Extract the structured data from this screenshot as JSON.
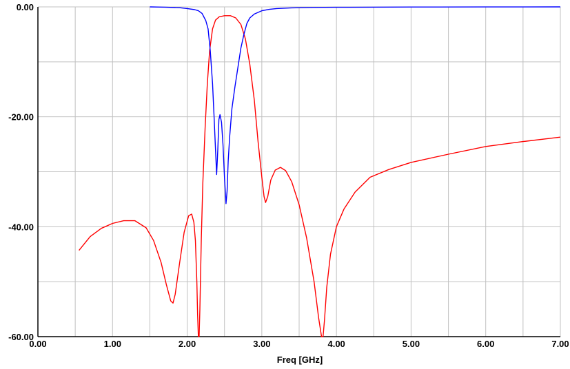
{
  "chart_data": {
    "type": "line",
    "title": "",
    "xlabel": "Freq [GHz]",
    "ylabel": "",
    "xlim": [
      0,
      7
    ],
    "ylim": [
      -60,
      0
    ],
    "x_ticks": [
      0,
      0.5,
      1,
      1.5,
      2,
      2.5,
      3,
      3.5,
      4,
      4.5,
      5,
      5.5,
      6,
      6.5,
      7
    ],
    "x_tick_labels": [
      "0.00",
      "1.00",
      "2.00",
      "3.00",
      "4.00",
      "5.00",
      "6.00",
      "7.00"
    ],
    "x_tick_label_values": [
      0,
      1,
      2,
      3,
      4,
      5,
      6,
      7
    ],
    "y_ticks": [
      0,
      -10,
      -20,
      -30,
      -40,
      -50,
      -60
    ],
    "y_tick_labels": [
      "0.00",
      "-20.00",
      "-40.00",
      "-60.00"
    ],
    "y_tick_label_values": [
      0,
      -20,
      -40,
      -60
    ],
    "grid": true,
    "legend": "none",
    "series": [
      {
        "color": "#ff0000",
        "x": [
          0.55,
          0.7,
          0.85,
          1.0,
          1.15,
          1.3,
          1.45,
          1.55,
          1.65,
          1.72,
          1.78,
          1.81,
          1.84,
          1.9,
          1.96,
          2.02,
          2.06,
          2.09,
          2.11,
          2.13,
          2.14,
          2.15,
          2.16,
          2.17,
          2.19,
          2.21,
          2.24,
          2.27,
          2.3,
          2.34,
          2.38,
          2.43,
          2.5,
          2.58,
          2.65,
          2.72,
          2.78,
          2.84,
          2.9,
          2.95,
          3.0,
          3.03,
          3.05,
          3.08,
          3.12,
          3.18,
          3.25,
          3.32,
          3.4,
          3.5,
          3.6,
          3.7,
          3.76,
          3.8,
          3.82,
          3.84,
          3.87,
          3.92,
          4.0,
          4.1,
          4.25,
          4.45,
          4.7,
          5.0,
          5.5,
          6.0,
          6.5,
          7.0
        ],
        "values": [
          -44.3,
          -41.8,
          -40.3,
          -39.4,
          -38.9,
          -38.9,
          -40.2,
          -42.5,
          -46.5,
          -50.5,
          -53.5,
          -53.9,
          -52.3,
          -46.5,
          -41.0,
          -38.0,
          -37.7,
          -39.2,
          -42.5,
          -50.0,
          -56.0,
          -60.0,
          -60.0,
          -55.0,
          -42.0,
          -32.0,
          -22.0,
          -14.0,
          -8.0,
          -4.0,
          -2.4,
          -1.8,
          -1.6,
          -1.6,
          -2.0,
          -3.2,
          -5.8,
          -10.5,
          -17.0,
          -24.5,
          -31.0,
          -34.5,
          -35.6,
          -34.5,
          -31.5,
          -29.7,
          -29.2,
          -29.8,
          -31.8,
          -36.0,
          -42.0,
          -50.0,
          -56.5,
          -60.0,
          -60.0,
          -57.0,
          -51.0,
          -45.0,
          -40.0,
          -36.8,
          -33.7,
          -31.0,
          -29.6,
          -28.3,
          -26.8,
          -25.4,
          -24.5,
          -23.7
        ]
      },
      {
        "color": "#0000ff",
        "x": [
          1.5,
          1.7,
          1.9,
          2.0,
          2.1,
          2.15,
          2.2,
          2.25,
          2.28,
          2.31,
          2.34,
          2.36,
          2.38,
          2.395,
          2.41,
          2.425,
          2.44,
          2.46,
          2.48,
          2.5,
          2.52,
          2.535,
          2.55,
          2.57,
          2.6,
          2.64,
          2.68,
          2.72,
          2.76,
          2.8,
          2.84,
          2.9,
          3.0,
          3.1,
          3.2,
          3.4,
          3.7,
          4.0,
          5.0,
          6.0,
          7.0
        ],
        "values": [
          0,
          -0.05,
          -0.15,
          -0.3,
          -0.5,
          -0.7,
          -1.2,
          -2.5,
          -4.0,
          -8.0,
          -14.0,
          -20.0,
          -26.0,
          -30.5,
          -26.0,
          -20.5,
          -19.6,
          -21.0,
          -25.0,
          -31.0,
          -35.8,
          -33.5,
          -28.0,
          -23.5,
          -18.5,
          -14.5,
          -11.0,
          -7.5,
          -5.0,
          -3.0,
          -2.0,
          -1.3,
          -0.7,
          -0.45,
          -0.3,
          -0.18,
          -0.1,
          -0.07,
          -0.03,
          -0.01,
          0
        ]
      }
    ]
  }
}
